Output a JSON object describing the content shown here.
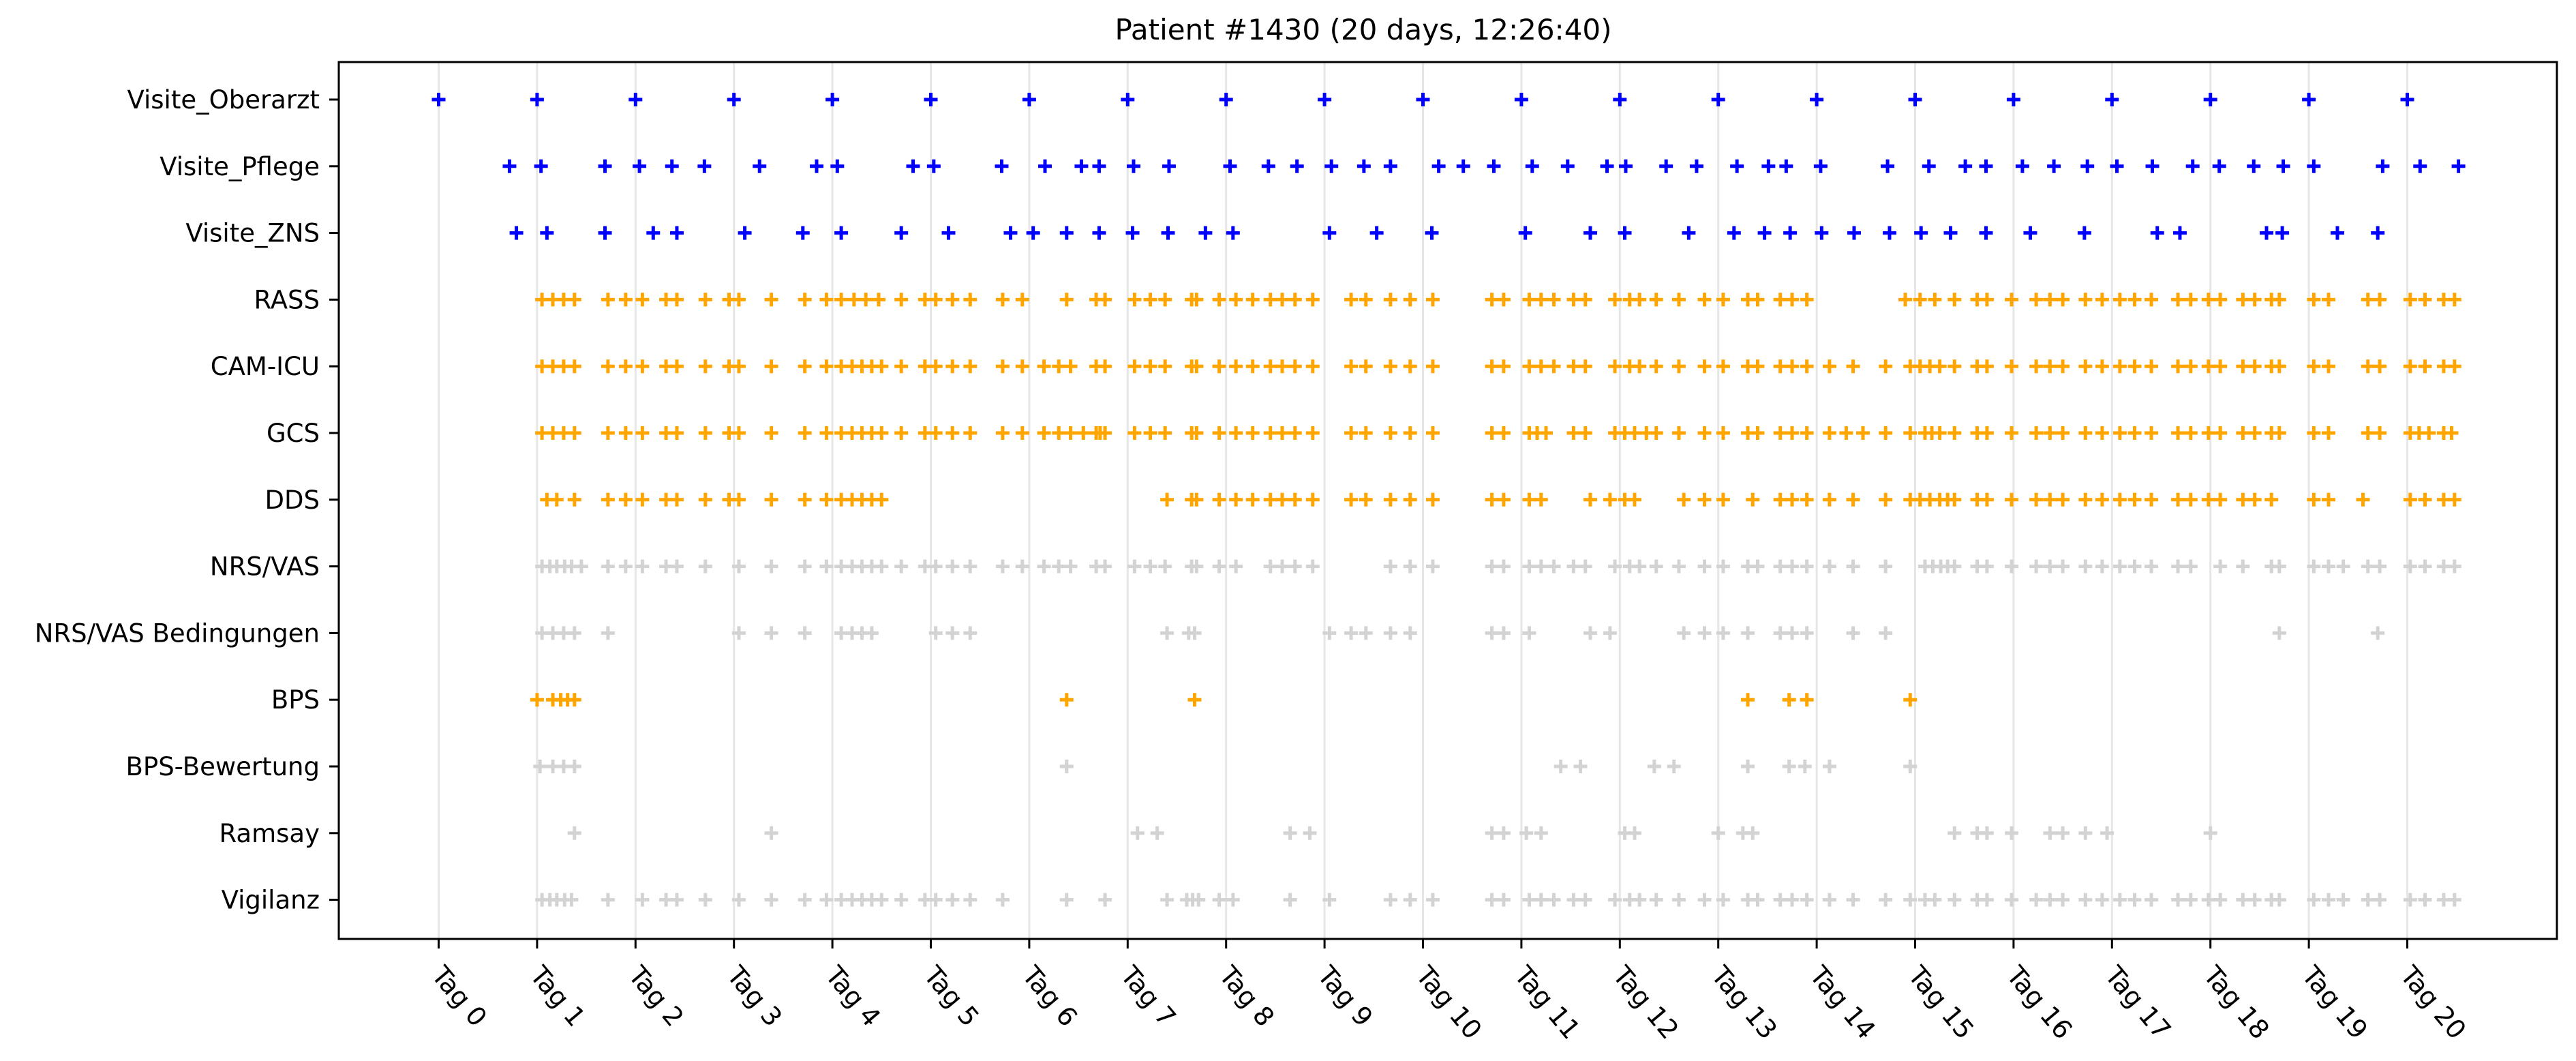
{
  "chart_data": {
    "type": "scatter",
    "title": "Patient #1430 (20 days, 12:26:40)",
    "xlabel": "",
    "ylabel": "",
    "marker": "+",
    "grid": "vertical lines at each day",
    "legend": "none",
    "xlim": [
      -1.0,
      21.5
    ],
    "x_ticks": [
      {
        "value": 0,
        "label": "Tag 0"
      },
      {
        "value": 1,
        "label": "Tag 1"
      },
      {
        "value": 2,
        "label": "Tag 2"
      },
      {
        "value": 3,
        "label": "Tag 3"
      },
      {
        "value": 4,
        "label": "Tag 4"
      },
      {
        "value": 5,
        "label": "Tag 5"
      },
      {
        "value": 6,
        "label": "Tag 6"
      },
      {
        "value": 7,
        "label": "Tag 7"
      },
      {
        "value": 8,
        "label": "Tag 8"
      },
      {
        "value": 9,
        "label": "Tag 9"
      },
      {
        "value": 10,
        "label": "Tag 10"
      },
      {
        "value": 11,
        "label": "Tag 11"
      },
      {
        "value": 12,
        "label": "Tag 12"
      },
      {
        "value": 13,
        "label": "Tag 13"
      },
      {
        "value": 14,
        "label": "Tag 14"
      },
      {
        "value": 15,
        "label": "Tag 15"
      },
      {
        "value": 16,
        "label": "Tag 16"
      },
      {
        "value": 17,
        "label": "Tag 17"
      },
      {
        "value": 18,
        "label": "Tag 18"
      },
      {
        "value": 19,
        "label": "Tag 19"
      },
      {
        "value": 20,
        "label": "Tag 20"
      }
    ],
    "colors": {
      "doctor_visits": "#0000ff",
      "scored": "#ffa500",
      "not_scored": "#d3d3d3",
      "grid": "#e6e6e6"
    },
    "series": [
      {
        "name": "Visite_Oberarzt",
        "color": "#0000ff",
        "x": [
          0.0,
          1.0,
          2.0,
          3.0,
          4.0,
          5.0,
          6.0,
          7.0,
          8.0,
          9.0,
          10.0,
          11.0,
          12.0,
          13.0,
          14.0,
          15.0,
          16.0,
          17.0,
          18.0,
          19.0,
          20.0
        ]
      },
      {
        "name": "Visite_Pflege",
        "color": "#0000ff",
        "x": [
          0.72,
          1.04,
          1.69,
          2.04,
          2.37,
          2.7,
          3.26,
          3.84,
          4.05,
          4.82,
          5.03,
          5.72,
          6.16,
          6.53,
          6.71,
          7.06,
          7.42,
          8.04,
          8.43,
          8.72,
          9.07,
          9.4,
          9.67,
          10.16,
          10.41,
          10.72,
          11.11,
          11.47,
          11.87,
          12.06,
          12.47,
          12.78,
          13.19,
          13.51,
          13.69,
          14.04,
          14.72,
          15.14,
          15.51,
          15.72,
          16.09,
          16.41,
          16.75,
          17.05,
          17.41,
          17.82,
          18.09,
          18.44,
          18.74,
          19.05,
          19.75,
          20.13,
          20.52
        ]
      },
      {
        "name": "Visite_ZNS",
        "color": "#0000ff",
        "x": [
          0.79,
          1.1,
          1.69,
          2.18,
          2.42,
          3.11,
          3.7,
          4.09,
          4.7,
          5.18,
          5.81,
          6.04,
          6.38,
          6.71,
          7.05,
          7.41,
          7.79,
          8.07,
          9.05,
          9.53,
          10.09,
          11.04,
          11.7,
          12.05,
          12.7,
          13.16,
          13.47,
          13.73,
          14.05,
          14.38,
          14.74,
          15.06,
          15.36,
          15.72,
          16.17,
          16.72,
          17.46,
          17.69,
          18.57,
          18.73,
          19.29,
          19.7
        ]
      },
      {
        "name": "RASS",
        "color": "#ffa500",
        "x": [
          1.05,
          1.16,
          1.27,
          1.38,
          1.72,
          1.9,
          2.07,
          2.31,
          2.42,
          2.71,
          2.95,
          3.05,
          3.38,
          3.72,
          3.94,
          4.09,
          4.22,
          4.34,
          4.47,
          4.7,
          4.94,
          5.05,
          5.22,
          5.4,
          5.73,
          5.93,
          6.38,
          6.68,
          6.77,
          7.07,
          7.23,
          7.38,
          7.65,
          7.7,
          7.93,
          8.1,
          8.27,
          8.45,
          8.57,
          8.7,
          8.88,
          9.27,
          9.42,
          9.67,
          9.87,
          10.1,
          10.7,
          10.82,
          11.08,
          11.2,
          11.33,
          11.53,
          11.65,
          11.95,
          12.1,
          12.2,
          12.37,
          12.6,
          12.86,
          13.05,
          13.3,
          13.4,
          13.63,
          13.75,
          13.9,
          14.9,
          15.05,
          15.2,
          15.4,
          15.63,
          15.73,
          15.98,
          16.23,
          16.37,
          16.5,
          16.73,
          16.9,
          17.08,
          17.23,
          17.4,
          17.67,
          17.8,
          17.98,
          18.1,
          18.33,
          18.45,
          18.62,
          18.7,
          19.05,
          19.2,
          19.6,
          19.72,
          20.03,
          20.18,
          20.37,
          20.48
        ]
      },
      {
        "name": "CAM-ICU",
        "color": "#ffa500",
        "x": [
          1.05,
          1.16,
          1.27,
          1.38,
          1.72,
          1.9,
          2.07,
          2.31,
          2.42,
          2.71,
          2.95,
          3.05,
          3.38,
          3.72,
          3.94,
          4.09,
          4.2,
          4.3,
          4.4,
          4.5,
          4.7,
          4.94,
          5.05,
          5.22,
          5.4,
          5.73,
          5.93,
          6.15,
          6.3,
          6.42,
          6.68,
          6.77,
          7.07,
          7.23,
          7.38,
          7.65,
          7.7,
          7.93,
          8.1,
          8.27,
          8.45,
          8.57,
          8.7,
          8.88,
          9.27,
          9.42,
          9.67,
          9.87,
          10.1,
          10.7,
          10.82,
          11.08,
          11.2,
          11.33,
          11.53,
          11.65,
          11.95,
          12.1,
          12.2,
          12.37,
          12.6,
          12.86,
          13.05,
          13.3,
          13.4,
          13.63,
          13.75,
          13.9,
          14.13,
          14.37,
          14.7,
          14.95,
          15.05,
          15.15,
          15.25,
          15.4,
          15.63,
          15.73,
          15.98,
          16.23,
          16.37,
          16.5,
          16.73,
          16.9,
          17.08,
          17.23,
          17.4,
          17.67,
          17.8,
          17.98,
          18.1,
          18.33,
          18.45,
          18.62,
          18.7,
          19.05,
          19.2,
          19.6,
          19.72,
          20.03,
          20.18,
          20.37,
          20.48
        ]
      },
      {
        "name": "GCS",
        "color": "#ffa500",
        "x": [
          1.05,
          1.16,
          1.27,
          1.38,
          1.72,
          1.9,
          2.07,
          2.31,
          2.42,
          2.71,
          2.95,
          3.05,
          3.38,
          3.72,
          3.94,
          4.09,
          4.2,
          4.3,
          4.4,
          4.5,
          4.7,
          4.94,
          5.05,
          5.22,
          5.4,
          5.73,
          5.93,
          6.15,
          6.3,
          6.42,
          6.55,
          6.68,
          6.72,
          6.77,
          7.07,
          7.23,
          7.38,
          7.65,
          7.7,
          7.93,
          8.1,
          8.27,
          8.45,
          8.57,
          8.7,
          8.88,
          9.27,
          9.42,
          9.67,
          9.87,
          10.1,
          10.7,
          10.82,
          11.08,
          11.16,
          11.25,
          11.53,
          11.65,
          11.95,
          12.05,
          12.15,
          12.27,
          12.37,
          12.6,
          12.86,
          13.05,
          13.3,
          13.4,
          13.63,
          13.75,
          13.9,
          14.13,
          14.3,
          14.47,
          14.7,
          14.95,
          15.1,
          15.17,
          15.25,
          15.4,
          15.63,
          15.73,
          15.98,
          16.23,
          16.37,
          16.5,
          16.73,
          16.9,
          17.08,
          17.23,
          17.4,
          17.67,
          17.8,
          17.98,
          18.1,
          18.33,
          18.45,
          18.62,
          18.7,
          19.05,
          19.2,
          19.6,
          19.72,
          20.03,
          20.12,
          20.22,
          20.37,
          20.45
        ]
      },
      {
        "name": "DDS",
        "color": "#ffa500",
        "x": [
          1.1,
          1.2,
          1.38,
          1.72,
          1.9,
          2.07,
          2.31,
          2.42,
          2.71,
          2.95,
          3.05,
          3.38,
          3.72,
          3.94,
          4.09,
          4.2,
          4.3,
          4.4,
          4.5,
          7.4,
          7.65,
          7.7,
          7.93,
          8.1,
          8.27,
          8.45,
          8.57,
          8.7,
          8.88,
          9.27,
          9.42,
          9.67,
          9.87,
          10.1,
          10.7,
          10.82,
          11.08,
          11.2,
          11.7,
          11.9,
          12.05,
          12.15,
          12.65,
          12.86,
          13.05,
          13.35,
          13.63,
          13.75,
          13.9,
          14.13,
          14.37,
          14.7,
          14.95,
          15.05,
          15.15,
          15.25,
          15.33,
          15.4,
          15.63,
          15.73,
          15.98,
          16.23,
          16.37,
          16.5,
          16.73,
          16.9,
          17.08,
          17.23,
          17.4,
          17.67,
          17.8,
          17.98,
          18.1,
          18.33,
          18.45,
          18.62,
          19.05,
          19.2,
          19.55,
          20.03,
          20.18,
          20.37,
          20.48
        ]
      },
      {
        "name": "NRS/VAS",
        "color": "#d3d3d3",
        "x": [
          1.05,
          1.13,
          1.2,
          1.28,
          1.35,
          1.45,
          1.72,
          1.9,
          2.07,
          2.31,
          2.42,
          2.71,
          3.05,
          3.38,
          3.72,
          3.94,
          4.09,
          4.2,
          4.3,
          4.4,
          4.5,
          4.7,
          4.94,
          5.05,
          5.22,
          5.4,
          5.73,
          5.93,
          6.15,
          6.3,
          6.42,
          6.68,
          6.77,
          7.07,
          7.23,
          7.38,
          7.65,
          7.7,
          7.93,
          8.1,
          8.45,
          8.57,
          8.7,
          8.88,
          9.67,
          9.87,
          10.1,
          10.7,
          10.82,
          11.08,
          11.2,
          11.33,
          11.53,
          11.65,
          11.95,
          12.1,
          12.2,
          12.37,
          12.6,
          12.86,
          13.05,
          13.3,
          13.4,
          13.63,
          13.75,
          13.9,
          14.13,
          14.37,
          14.7,
          15.1,
          15.18,
          15.26,
          15.33,
          15.4,
          15.63,
          15.73,
          15.98,
          16.23,
          16.37,
          16.5,
          16.73,
          16.9,
          17.08,
          17.23,
          17.4,
          17.67,
          17.8,
          18.1,
          18.33,
          18.62,
          18.7,
          19.05,
          19.2,
          19.35,
          19.6,
          19.72,
          20.03,
          20.18,
          20.37,
          20.48
        ]
      },
      {
        "name": "NRS/VAS Bedingungen",
        "color": "#d3d3d3",
        "x": [
          1.05,
          1.16,
          1.27,
          1.38,
          1.72,
          3.05,
          3.38,
          3.72,
          4.09,
          4.2,
          4.3,
          4.4,
          5.05,
          5.22,
          5.4,
          7.4,
          7.62,
          7.68,
          9.05,
          9.27,
          9.42,
          9.67,
          9.87,
          10.7,
          10.82,
          11.08,
          11.7,
          11.9,
          12.65,
          12.86,
          13.05,
          13.3,
          13.63,
          13.75,
          13.9,
          14.37,
          14.7,
          18.7,
          19.7
        ]
      },
      {
        "name": "BPS",
        "color": "#ffa500",
        "x": [
          1.0,
          1.16,
          1.24,
          1.31,
          1.38,
          6.38,
          7.68,
          13.3,
          13.72,
          13.9,
          14.95
        ]
      },
      {
        "name": "BPS-Bewertung",
        "color": "#d3d3d3",
        "x": [
          1.03,
          1.16,
          1.27,
          1.38,
          6.38,
          11.4,
          11.6,
          12.35,
          12.55,
          13.3,
          13.72,
          13.88,
          14.13,
          14.95
        ]
      },
      {
        "name": "Ramsay",
        "color": "#d3d3d3",
        "x": [
          1.38,
          3.38,
          7.1,
          7.3,
          8.65,
          8.85,
          10.7,
          10.82,
          11.05,
          11.2,
          12.05,
          12.15,
          13.0,
          13.25,
          13.35,
          15.4,
          15.63,
          15.73,
          15.98,
          16.37,
          16.5,
          16.73,
          16.95,
          18.0
        ]
      },
      {
        "name": "Vigilanz",
        "color": "#d3d3d3",
        "x": [
          1.05,
          1.13,
          1.2,
          1.28,
          1.35,
          1.72,
          2.07,
          2.31,
          2.42,
          2.71,
          3.05,
          3.38,
          3.72,
          3.94,
          4.09,
          4.2,
          4.3,
          4.4,
          4.5,
          4.7,
          4.94,
          5.05,
          5.22,
          5.4,
          5.73,
          6.38,
          6.77,
          7.4,
          7.6,
          7.66,
          7.72,
          7.93,
          8.07,
          8.65,
          9.05,
          9.67,
          9.87,
          10.1,
          10.7,
          10.82,
          11.08,
          11.2,
          11.33,
          11.53,
          11.65,
          11.95,
          12.1,
          12.2,
          12.37,
          12.6,
          12.86,
          13.05,
          13.3,
          13.4,
          13.63,
          13.75,
          13.9,
          14.13,
          14.37,
          14.7,
          14.95,
          15.1,
          15.2,
          15.4,
          15.63,
          15.73,
          15.98,
          16.23,
          16.37,
          16.5,
          16.73,
          16.9,
          17.08,
          17.23,
          17.4,
          17.67,
          17.8,
          17.98,
          18.1,
          18.33,
          18.45,
          18.62,
          18.7,
          19.05,
          19.2,
          19.35,
          19.6,
          19.72,
          20.03,
          20.18,
          20.37,
          20.48
        ]
      }
    ]
  }
}
